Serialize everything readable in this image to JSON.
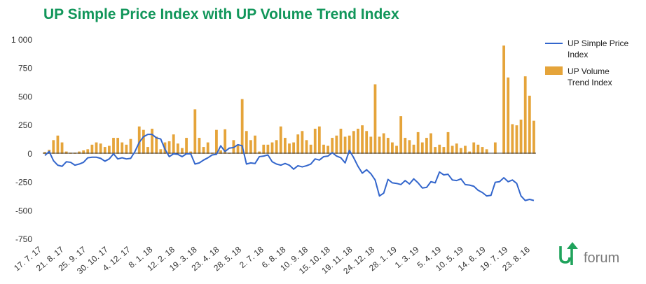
{
  "logo": {
    "text": "forum",
    "mark_color": "#20a35c"
  },
  "chart_data": {
    "type": "bar+line",
    "title": "UP Simple Price Index with UP Volume Trend Index",
    "title_color": "#11965a",
    "ylim": [
      -750,
      1000
    ],
    "yticks": [
      1000,
      750,
      500,
      250,
      0,
      -250,
      -500,
      -750
    ],
    "ytick_labels": [
      "1 000",
      "750",
      "500",
      "250",
      "0",
      "-250",
      "-500",
      "-750"
    ],
    "grid": false,
    "legend_position": "right",
    "x_tick_labels": [
      "17. 7. 17",
      "21. 8. 17",
      "25. 9. 17",
      "30. 10. 17",
      "4. 12. 17",
      "8. 1. 18",
      "12. 2. 18",
      "19. 3. 18",
      "23. 4. 18",
      "28. 5. 18",
      "2. 7. 18",
      "6. 8. 18",
      "10. 9. 18",
      "15. 10. 18",
      "19. 11. 18",
      "24. 12. 18",
      "28. 1. 19",
      "1. 3. 19",
      "5. 4. 19",
      "10. 5. 19",
      "14. 6. 19",
      "19. 7. 19",
      "23. 8. 16"
    ],
    "series": [
      {
        "name": "UP Simple Price Index",
        "kind": "line",
        "color": "#3366cc",
        "values": [
          -15,
          20,
          -60,
          -100,
          -110,
          -70,
          -75,
          -100,
          -90,
          -75,
          -35,
          -30,
          -30,
          -40,
          -65,
          -45,
          0,
          -45,
          -35,
          -45,
          -40,
          20,
          100,
          150,
          170,
          170,
          140,
          130,
          40,
          -25,
          0,
          -5,
          -25,
          0,
          0,
          -90,
          -80,
          -55,
          -35,
          -10,
          -5,
          70,
          20,
          50,
          55,
          80,
          70,
          -90,
          -80,
          -85,
          -25,
          -20,
          -10,
          -70,
          -90,
          -100,
          -85,
          -100,
          -135,
          -105,
          -115,
          -105,
          -90,
          -45,
          -55,
          -25,
          -20,
          10,
          -20,
          -35,
          -80,
          30,
          -35,
          -110,
          -170,
          -140,
          -175,
          -230,
          -370,
          -345,
          -225,
          -255,
          -260,
          -270,
          -235,
          -265,
          -220,
          -255,
          -300,
          -295,
          -245,
          -255,
          -160,
          -185,
          -180,
          -230,
          -235,
          -220,
          -270,
          -275,
          -285,
          -320,
          -340,
          -370,
          -365,
          -250,
          -245,
          -210,
          -245,
          -230,
          -260,
          -370,
          -410,
          -400,
          -410
        ]
      },
      {
        "name": "UP Volume Trend Index",
        "kind": "bar",
        "color": "#e5a43a",
        "values": [
          15,
          35,
          120,
          160,
          100,
          20,
          10,
          10,
          20,
          30,
          40,
          80,
          100,
          90,
          60,
          70,
          140,
          140,
          100,
          80,
          130,
          0,
          240,
          210,
          60,
          220,
          150,
          40,
          100,
          110,
          170,
          90,
          50,
          140,
          20,
          390,
          140,
          60,
          100,
          10,
          210,
          30,
          215,
          10,
          120,
          80,
          480,
          200,
          120,
          160,
          20,
          80,
          80,
          100,
          120,
          240,
          140,
          90,
          100,
          170,
          200,
          120,
          80,
          220,
          240,
          80,
          70,
          140,
          160,
          220,
          150,
          160,
          200,
          220,
          250,
          200,
          150,
          610,
          150,
          180,
          140,
          100,
          70,
          330,
          140,
          120,
          80,
          190,
          100,
          140,
          180,
          60,
          80,
          60,
          190,
          70,
          90,
          50,
          70,
          20,
          100,
          80,
          60,
          40,
          0,
          100,
          0,
          950,
          670,
          260,
          250,
          300,
          680,
          510,
          290
        ]
      }
    ]
  }
}
